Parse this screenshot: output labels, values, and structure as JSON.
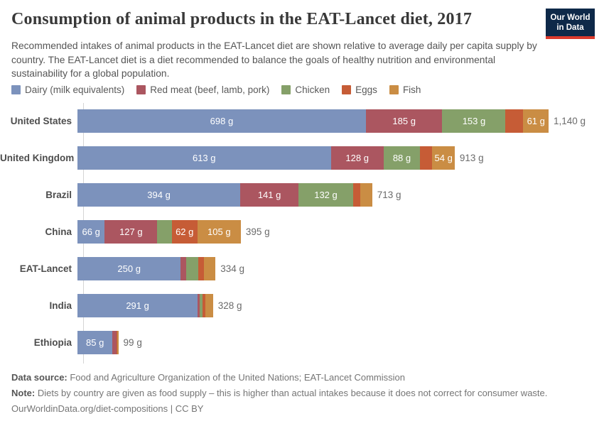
{
  "header": {
    "title": "Consumption of animal products in the EAT-Lancet diet, 2017",
    "logo": {
      "line1": "Our World",
      "line2": "in Data",
      "bg_color": "#0e2949",
      "accent_color": "#dc3a2c"
    }
  },
  "subtitle": "Recommended intakes of animal products in the EAT-Lancet diet are shown relative to average daily per capita supply by country. The EAT-Lancet diet is a diet recommended to balance the goals of healthy nutrition and environmental sustainability for a global population.",
  "legend": [
    {
      "label": "Dairy (milk equivalents)",
      "color": "#7c92bc"
    },
    {
      "label": "Red meat (beef, lamb, pork)",
      "color": "#ab5660"
    },
    {
      "label": "Chicken",
      "color": "#85a069"
    },
    {
      "label": "Eggs",
      "color": "#c65c36"
    },
    {
      "label": "Fish",
      "color": "#ca8d44"
    }
  ],
  "chart_data": {
    "type": "bar",
    "orientation": "horizontal_stacked",
    "unit": "g",
    "xmax": 1140,
    "grid": false,
    "series": [
      "Dairy (milk equivalents)",
      "Red meat (beef, lamb, pork)",
      "Chicken",
      "Eggs",
      "Fish"
    ],
    "series_slugs": [
      "dairy",
      "red-meat",
      "chicken",
      "eggs",
      "fish"
    ],
    "series_colors": [
      "#7c92bc",
      "#ab5660",
      "#85a069",
      "#c65c36",
      "#ca8d44"
    ],
    "categories": [
      "United States",
      "United Kingdom",
      "Brazil",
      "China",
      "EAT-Lancet",
      "India",
      "Ethiopia"
    ],
    "rows": [
      {
        "country": "United States",
        "values": [
          698,
          185,
          153,
          43,
          61
        ],
        "segment_labels": [
          "698 g",
          "185 g",
          "153 g",
          null,
          "61 g"
        ],
        "total": 1140,
        "total_label": "1,140 g"
      },
      {
        "country": "United Kingdom",
        "values": [
          613,
          128,
          88,
          30,
          54
        ],
        "segment_labels": [
          "613 g",
          "128 g",
          "88 g",
          null,
          "54 g"
        ],
        "total": 913,
        "total_label": "913 g"
      },
      {
        "country": "Brazil",
        "values": [
          394,
          141,
          132,
          18,
          28
        ],
        "segment_labels": [
          "394 g",
          "141 g",
          "132 g",
          null,
          null
        ],
        "total": 713,
        "total_label": "713 g"
      },
      {
        "country": "China",
        "values": [
          66,
          127,
          35,
          62,
          105
        ],
        "segment_labels": [
          "66 g",
          "127 g",
          null,
          "62 g",
          "105 g"
        ],
        "total": 395,
        "total_label": "395 g"
      },
      {
        "country": "EAT-Lancet",
        "values": [
          250,
          14,
          29,
          13,
          28
        ],
        "segment_labels": [
          "250 g",
          null,
          null,
          null,
          null
        ],
        "total": 334,
        "total_label": "334 g"
      },
      {
        "country": "India",
        "values": [
          291,
          5,
          6,
          8,
          18
        ],
        "segment_labels": [
          "291 g",
          null,
          null,
          null,
          null
        ],
        "total": 328,
        "total_label": "328 g"
      },
      {
        "country": "Ethiopia",
        "values": [
          85,
          9,
          1,
          2,
          2
        ],
        "segment_labels": [
          "85 g",
          null,
          null,
          null,
          null
        ],
        "total": 99,
        "total_label": "99 g"
      }
    ]
  },
  "footer": {
    "source_label": "Data source:",
    "source_text": " Food and Agriculture Organization of the United Nations; EAT-Lancet Commission",
    "note_label": "Note:",
    "note_text": " Diets by country are given as food supply – this is higher than actual intakes because it does not correct for consumer waste.",
    "link_text": "OurWorldinData.org/diet-compositions",
    "license_text": " | CC BY"
  }
}
